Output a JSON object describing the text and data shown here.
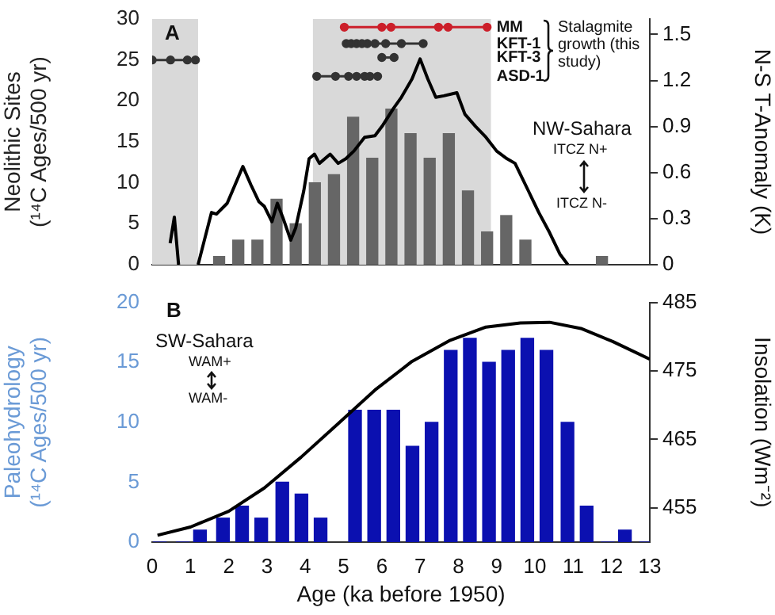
{
  "chart_data": [
    {
      "type": "bar",
      "xlim": [
        0,
        13
      ],
      "ylim": [
        0,
        30
      ],
      "yticks": [
        0,
        5,
        10,
        15,
        20,
        25,
        30
      ],
      "y2lim": [
        0,
        1.6
      ],
      "y2ticks": [
        0,
        0.3,
        0.6,
        0.9,
        1.2,
        1.5
      ],
      "ylabel": "Neolithic Sites (¹⁴C Ages/500 yr)",
      "y2label": "N-S T-Anomaly (K)",
      "tick_labels": "y",
      "grid": false,
      "legend": false,
      "bands": [
        {
          "axis": "x",
          "from": 0,
          "to": 1.2,
          "color": "#d9d9d9"
        },
        {
          "axis": "x",
          "from": 4.2,
          "to": 8.85,
          "color": "#d9d9d9"
        }
      ],
      "annotations": [
        "A",
        "Stalagmite growth (this study)",
        "NW-Sahara",
        "ITCZ N+",
        "ITCZ N-"
      ],
      "series": [
        {
          "color": "#666666",
          "x": [
            1.75,
            2.25,
            2.75,
            3.25,
            3.75,
            4.25,
            4.75,
            5.25,
            5.75,
            6.25,
            6.75,
            7.25,
            7.75,
            8.25,
            8.75,
            9.25,
            9.75,
            11.75
          ],
          "values": [
            1,
            3,
            3,
            8,
            5,
            10,
            11,
            18,
            13,
            19,
            16,
            13,
            16,
            9,
            4,
            6,
            3,
            1
          ]
        },
        {
          "type": "line",
          "axis": "y2",
          "color": "#000000",
          "marker": "none",
          "x": [
            0.47,
            0.58,
            0.69,
            1.0,
            1.2,
            1.55,
            1.68,
            1.96,
            2.37,
            2.58,
            2.79,
            2.93,
            3.13,
            3.27,
            3.41,
            3.62,
            3.75,
            3.96,
            4.1,
            4.24,
            4.37,
            4.65,
            4.86,
            5.06,
            5.27,
            5.55,
            5.82,
            6.03,
            6.31,
            6.51,
            6.79,
            7.0,
            7.2,
            7.41,
            7.62,
            7.96,
            8.17,
            8.45,
            8.72,
            9.0,
            9.27,
            9.48,
            9.83,
            10.1,
            10.38,
            10.65,
            10.86
          ],
          "values": [
            0.14,
            0.31,
            0,
            null,
            0,
            0.34,
            0.33,
            0.4,
            0.64,
            0.52,
            0.41,
            0.38,
            0.28,
            0.4,
            0.31,
            0.16,
            0.24,
            0.48,
            0.69,
            0.72,
            0.66,
            0.72,
            0.66,
            0.69,
            0.74,
            0.83,
            0.84,
            0.91,
            1.02,
            1.09,
            1.21,
            1.34,
            1.21,
            1.09,
            1.1,
            1.12,
            0.98,
            0.9,
            0.83,
            0.74,
            0.69,
            0.66,
            0.48,
            0.34,
            0.21,
            0.07,
            0
          ]
        },
        {
          "type": "line",
          "color": "#333333",
          "marker": "circle",
          "x": [
            0,
            0.48,
            0.92,
            1.13
          ],
          "values": [
            25,
            25,
            25,
            25
          ]
        },
        {
          "type": "line",
          "name": "MM",
          "color": "#cc1f2a",
          "marker": "circle",
          "x": [
            5.02,
            6.0,
            6.24,
            7.48,
            7.73,
            8.75
          ],
          "values": [
            29,
            29,
            29,
            29,
            29,
            29
          ]
        },
        {
          "type": "line",
          "name": "KFT-1",
          "color": "#333333",
          "marker": "circle",
          "x": [
            5.07,
            5.2,
            5.34,
            5.48,
            5.62,
            5.82,
            6.1,
            6.51,
            7.08
          ],
          "values": [
            27,
            27,
            27,
            27,
            27,
            27,
            27,
            27,
            27
          ]
        },
        {
          "type": "line",
          "name": "KFT-3",
          "color": "#333333",
          "marker": "circle",
          "x": [
            6.0,
            6.32
          ],
          "values": [
            25.3,
            25.3
          ]
        },
        {
          "type": "line",
          "name": "ASD-1",
          "color": "#333333",
          "marker": "circle",
          "x": [
            4.3,
            4.79,
            5.13,
            5.34,
            5.55,
            5.69,
            5.89
          ],
          "values": [
            23,
            23,
            23,
            23,
            23,
            23,
            23
          ]
        }
      ]
    },
    {
      "type": "bar",
      "xlim": [
        0,
        13
      ],
      "xticks": [
        0,
        1,
        2,
        3,
        4,
        5,
        6,
        7,
        8,
        9,
        10,
        11,
        12,
        13
      ],
      "xlabel": "Age (ka before 1950)",
      "ylim": [
        0,
        20
      ],
      "yticks": [
        0,
        5,
        10,
        15,
        20
      ],
      "y2lim": [
        450,
        485
      ],
      "y2ticks": [
        455,
        465,
        475,
        485
      ],
      "ylabel": "Paleohydrology (¹⁴C Ages/500 yr)",
      "y2label": "Insolation (Wm⁻²)",
      "grid": false,
      "legend": false,
      "annotations": [
        "B",
        "SW-Sahara",
        "WAM+",
        "WAM-"
      ],
      "series": [
        {
          "color": "#0b10b0",
          "x": [
            0.2,
            0.8,
            1.25,
            1.85,
            2.35,
            2.85,
            3.4,
            3.9,
            4.4,
            5.3,
            5.8,
            6.3,
            6.8,
            7.3,
            7.8,
            8.3,
            8.8,
            9.3,
            9.8,
            10.3,
            10.85,
            11.35,
            11.9,
            12.35,
            12.9
          ],
          "values": [
            0,
            0,
            1,
            2,
            3,
            2,
            5,
            4,
            2,
            11,
            11,
            11,
            8,
            10,
            16,
            17,
            15,
            16,
            17,
            16,
            10,
            3,
            0,
            1,
            0
          ]
        },
        {
          "type": "line",
          "axis": "y2",
          "color": "#000000",
          "marker": "none",
          "x": [
            0.14,
            1,
            2,
            2.93,
            3.89,
            4.86,
            5.82,
            6.79,
            7.76,
            8.72,
            9.62,
            10.38,
            11.2,
            12.03,
            13
          ],
          "values": [
            451.0,
            452.2,
            454.5,
            457.9,
            462.4,
            467.3,
            472.2,
            476.4,
            479.4,
            481.4,
            482.0,
            482.1,
            481.2,
            479.3,
            476.7
          ]
        }
      ]
    }
  ]
}
